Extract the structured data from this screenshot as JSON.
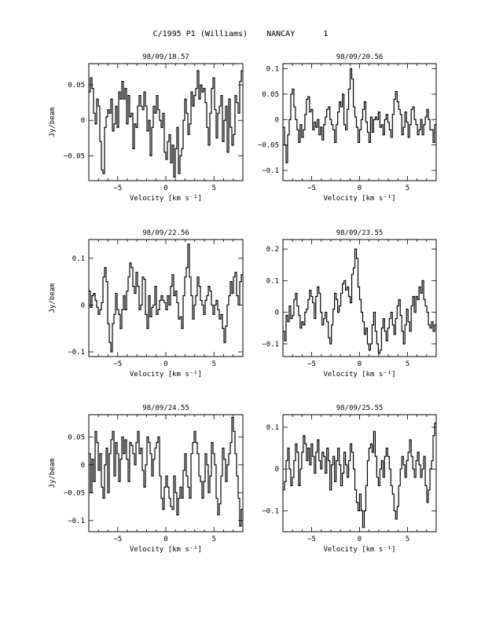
{
  "figure": {
    "title": "C/1995 P1 (Williams)    NANCAY      1",
    "xlabel": "Velocity [km s⁻¹]",
    "ylabel": "Jy/beam"
  },
  "chart_data": [
    {
      "type": "line",
      "title": "98/09/18.57",
      "xlabel": "Velocity [km s⁻¹]",
      "ylabel": "Jy/beam",
      "xlim": [
        -8,
        8
      ],
      "ylim": [
        -0.085,
        0.08
      ],
      "xticks": [
        -5,
        0,
        5
      ],
      "yticks": [
        0.05,
        0,
        -0.05
      ],
      "ytick_labels": [
        "0.05",
        "0",
        "−0.05"
      ],
      "values": [
        0.04,
        0.06,
        0.045,
        0.01,
        -0.005,
        0.03,
        0.02,
        -0.03,
        -0.07,
        -0.075,
        -0.01,
        0.005,
        0.015,
        0.01,
        0.03,
        -0.015,
        -0.005,
        0.02,
        -0.01,
        0.04,
        0.03,
        0.055,
        0.03,
        0.045,
        -0.005,
        0.035,
        0.005,
        0.01,
        -0.04,
        -0.005,
        -0.01,
        0.02,
        0.035,
        0.02,
        0.015,
        0.04,
        0.02,
        -0.015,
        0.0,
        -0.05,
        -0.01,
        0.02,
        0.01,
        0.035,
        0.015,
        0.0,
        -0.01,
        0.01,
        -0.045,
        -0.055,
        -0.03,
        -0.02,
        -0.06,
        -0.035,
        -0.08,
        -0.04,
        -0.01,
        -0.075,
        -0.05,
        -0.04,
        0.0,
        0.03,
        0.01,
        -0.02,
        -0.005,
        0.04,
        0.02,
        0.035,
        0.045,
        0.07,
        0.03,
        0.05,
        0.04,
        0.045,
        0.025,
        -0.01,
        -0.035,
        0.01,
        0.045,
        0.06,
        0.015,
        -0.025,
        0.01,
        0.02,
        0.035,
        -0.03,
        0.0,
        0.02,
        -0.045,
        0.03,
        -0.01,
        -0.035,
        -0.02,
        0.035,
        0.025,
        0.01,
        0.055,
        0.07
      ]
    },
    {
      "type": "line",
      "title": "98/09/20.56",
      "xlabel": "Velocity [km s⁻¹]",
      "ylabel": "",
      "xlim": [
        -8,
        8
      ],
      "ylim": [
        -0.12,
        0.11
      ],
      "xticks": [
        -5,
        0,
        5
      ],
      "yticks": [
        0.1,
        0.05,
        0,
        -0.05,
        -0.1
      ],
      "ytick_labels": [
        "0.1",
        "0.05",
        "0",
        "−0.05",
        "−0.1"
      ],
      "values": [
        -0.015,
        -0.05,
        -0.085,
        -0.03,
        0.0,
        0.05,
        0.06,
        0.025,
        0.0,
        -0.02,
        -0.045,
        -0.01,
        -0.035,
        -0.02,
        0.01,
        0.04,
        0.045,
        0.015,
        0.02,
        -0.02,
        -0.005,
        -0.015,
        0.0,
        -0.03,
        -0.015,
        -0.04,
        -0.01,
        0.005,
        0.02,
        0.025,
        0.0,
        -0.01,
        -0.02,
        -0.045,
        -0.01,
        0.015,
        0.035,
        0.025,
        0.05,
        -0.01,
        -0.02,
        0.02,
        0.06,
        0.1,
        0.08,
        0.025,
        0.005,
        -0.015,
        -0.045,
        -0.02,
        0.0,
        0.02,
        0.035,
        -0.005,
        -0.025,
        -0.045,
        0.005,
        -0.025,
        0.0,
        0.005,
        0.0,
        0.015,
        -0.015,
        -0.01,
        -0.03,
        0.0,
        0.01,
        -0.005,
        -0.02,
        -0.035,
        0.01,
        0.04,
        0.055,
        0.035,
        0.02,
        0.01,
        -0.03,
        -0.015,
        0.015,
        -0.005,
        -0.035,
        -0.01,
        0.02,
        0.025,
        0.0,
        -0.01,
        -0.03,
        -0.02,
        0.0,
        -0.03,
        -0.01,
        0.005,
        0.02,
        0.0,
        -0.02,
        -0.02,
        -0.045,
        -0.01
      ]
    },
    {
      "type": "line",
      "title": "98/09/22.56",
      "xlabel": "Velocity [km s⁻¹]",
      "ylabel": "Jy/beam",
      "xlim": [
        -8,
        8
      ],
      "ylim": [
        -0.11,
        0.14
      ],
      "xticks": [
        -5,
        0,
        5
      ],
      "yticks": [
        0.1,
        0,
        -0.1
      ],
      "ytick_labels": [
        "0.1",
        "0",
        "−0.1"
      ],
      "values": [
        0.03,
        -0.005,
        0.02,
        0.025,
        0.01,
        -0.005,
        -0.02,
        -0.01,
        0.005,
        0.06,
        0.08,
        0.05,
        -0.04,
        -0.08,
        -0.1,
        -0.04,
        -0.02,
        0.025,
        -0.01,
        -0.02,
        -0.05,
        -0.01,
        0.02,
        -0.01,
        0.03,
        0.06,
        0.09,
        0.08,
        0.04,
        0.025,
        0.07,
        0.04,
        -0.01,
        0.0,
        0.06,
        0.055,
        -0.02,
        -0.05,
        0.02,
        -0.025,
        -0.005,
        0.0,
        0.04,
        -0.02,
        -0.01,
        0.01,
        0.02,
        0.01,
        0.005,
        -0.01,
        0.02,
        0.0,
        0.04,
        0.065,
        0.02,
        0.03,
        0.005,
        -0.03,
        -0.025,
        -0.05,
        0.02,
        0.06,
        0.08,
        0.13,
        0.06,
        0.02,
        -0.03,
        0.0,
        0.02,
        0.06,
        0.04,
        0.01,
        0.0,
        -0.02,
        0.01,
        0.02,
        0.04,
        0.03,
        0.0,
        -0.02,
        0.0,
        0.01,
        -0.01,
        -0.03,
        -0.02,
        -0.05,
        -0.08,
        -0.045,
        0.0,
        0.02,
        0.05,
        0.025,
        0.06,
        0.07,
        0.02,
        0.0,
        0.05,
        0.065
      ]
    },
    {
      "type": "line",
      "title": "98/09/23.55",
      "xlabel": "Velocity [km s⁻¹]",
      "ylabel": "",
      "xlim": [
        -8,
        8
      ],
      "ylim": [
        -0.14,
        0.23
      ],
      "xticks": [
        -5,
        0,
        5
      ],
      "yticks": [
        0.2,
        0.1,
        0,
        -0.1
      ],
      "ytick_labels": [
        "0.2",
        "0.1",
        "0",
        "−0.1"
      ],
      "values": [
        -0.06,
        -0.09,
        -0.01,
        -0.03,
        0.02,
        -0.02,
        -0.01,
        0.04,
        0.06,
        0.02,
        -0.01,
        -0.05,
        -0.03,
        -0.04,
        0.0,
        0.01,
        0.04,
        0.07,
        0.05,
        0.03,
        -0.02,
        0.05,
        0.08,
        0.06,
        0.0,
        -0.04,
        -0.02,
        0.0,
        -0.03,
        -0.08,
        -0.1,
        -0.04,
        0.01,
        0.06,
        0.04,
        0.0,
        0.02,
        0.06,
        0.09,
        0.1,
        0.07,
        0.08,
        0.05,
        0.03,
        0.12,
        0.14,
        0.2,
        0.17,
        0.08,
        0.04,
        0.0,
        -0.03,
        -0.07,
        -0.05,
        -0.1,
        -0.12,
        -0.1,
        -0.04,
        0.0,
        -0.06,
        -0.1,
        -0.13,
        -0.12,
        -0.05,
        -0.02,
        -0.06,
        -0.09,
        -0.05,
        -0.02,
        0.0,
        -0.04,
        -0.07,
        -0.02,
        0.02,
        0.04,
        -0.01,
        -0.06,
        -0.1,
        -0.04,
        0.01,
        -0.03,
        -0.06,
        0.02,
        0.05,
        0.0,
        0.05,
        0.04,
        0.08,
        0.06,
        0.1,
        0.04,
        0.02,
        0.0,
        -0.04,
        -0.05,
        -0.03,
        -0.06,
        -0.04
      ]
    },
    {
      "type": "line",
      "title": "98/09/24.55",
      "xlabel": "Velocity [km s⁻¹]",
      "ylabel": "Jy/beam",
      "xlim": [
        -8,
        8
      ],
      "ylim": [
        -0.12,
        0.09
      ],
      "xticks": [
        -5,
        0,
        5
      ],
      "yticks": [
        0.05,
        0,
        -0.05,
        -0.1
      ],
      "ytick_labels": [
        "0.05",
        "0",
        "−0.05",
        "−0.1"
      ],
      "values": [
        0.02,
        -0.05,
        0.01,
        -0.03,
        0.06,
        0.04,
        -0.01,
        0.02,
        -0.04,
        -0.06,
        0.0,
        0.03,
        -0.05,
        0.02,
        0.045,
        0.06,
        -0.02,
        0.04,
        0.02,
        -0.03,
        0.01,
        0.05,
        0.02,
        0.045,
        0.01,
        -0.03,
        0.04,
        0.035,
        0.02,
        0.0,
        0.04,
        0.06,
        0.02,
        0.03,
        -0.01,
        -0.04,
        0.0,
        0.05,
        0.04,
        0.02,
        -0.02,
        0.01,
        0.03,
        0.04,
        0.05,
        -0.02,
        -0.06,
        -0.08,
        -0.04,
        -0.02,
        -0.04,
        -0.06,
        -0.075,
        -0.08,
        -0.02,
        -0.05,
        -0.09,
        -0.06,
        -0.04,
        -0.06,
        -0.01,
        0.02,
        -0.02,
        -0.04,
        -0.06,
        0.02,
        0.04,
        0.06,
        0.04,
        0.02,
        -0.02,
        -0.03,
        -0.06,
        -0.03,
        0.02,
        0.0,
        -0.05,
        -0.02,
        0.04,
        0.02,
        0.0,
        -0.06,
        -0.09,
        -0.07,
        -0.02,
        0.03,
        0.01,
        -0.03,
        0.0,
        0.02,
        0.04,
        0.085,
        0.06,
        0.02,
        -0.02,
        -0.06,
        -0.11,
        -0.08
      ]
    },
    {
      "type": "line",
      "title": "98/09/25.55",
      "xlabel": "Velocity [km s⁻¹]",
      "ylabel": "",
      "xlim": [
        -8,
        8
      ],
      "ylim": [
        -0.15,
        0.13
      ],
      "xticks": [
        -5,
        0,
        5
      ],
      "yticks": [
        0.1,
        0,
        -0.1
      ],
      "ytick_labels": [
        "0.1",
        "0",
        "−0.1"
      ],
      "values": [
        -0.05,
        -0.03,
        0.02,
        0.05,
        0.0,
        -0.04,
        -0.02,
        0.02,
        0.06,
        0.04,
        -0.04,
        0.0,
        0.04,
        0.08,
        0.06,
        0.02,
        0.05,
        0.01,
        0.06,
        0.03,
        -0.01,
        0.04,
        0.07,
        0.02,
        0.0,
        0.04,
        0.03,
        -0.01,
        0.05,
        0.02,
        -0.05,
        0.01,
        0.03,
        -0.03,
        0.02,
        0.05,
        0.01,
        -0.04,
        -0.01,
        0.04,
        0.01,
        -0.02,
        0.02,
        0.06,
        0.04,
        0.0,
        -0.05,
        -0.08,
        -0.1,
        -0.06,
        -0.1,
        -0.14,
        -0.1,
        -0.04,
        0.02,
        0.05,
        0.06,
        0.04,
        0.09,
        0.03,
        -0.02,
        -0.04,
        0.0,
        0.02,
        -0.02,
        0.03,
        0.05,
        0.03,
        0.0,
        -0.04,
        -0.06,
        -0.1,
        -0.12,
        -0.09,
        -0.04,
        0.0,
        0.03,
        0.01,
        -0.02,
        0.02,
        0.04,
        0.07,
        0.03,
        0.0,
        -0.02,
        0.02,
        0.04,
        0.01,
        -0.02,
        0.0,
        0.03,
        -0.04,
        -0.08,
        -0.05,
        0.0,
        0.02,
        0.08,
        0.11
      ]
    }
  ]
}
